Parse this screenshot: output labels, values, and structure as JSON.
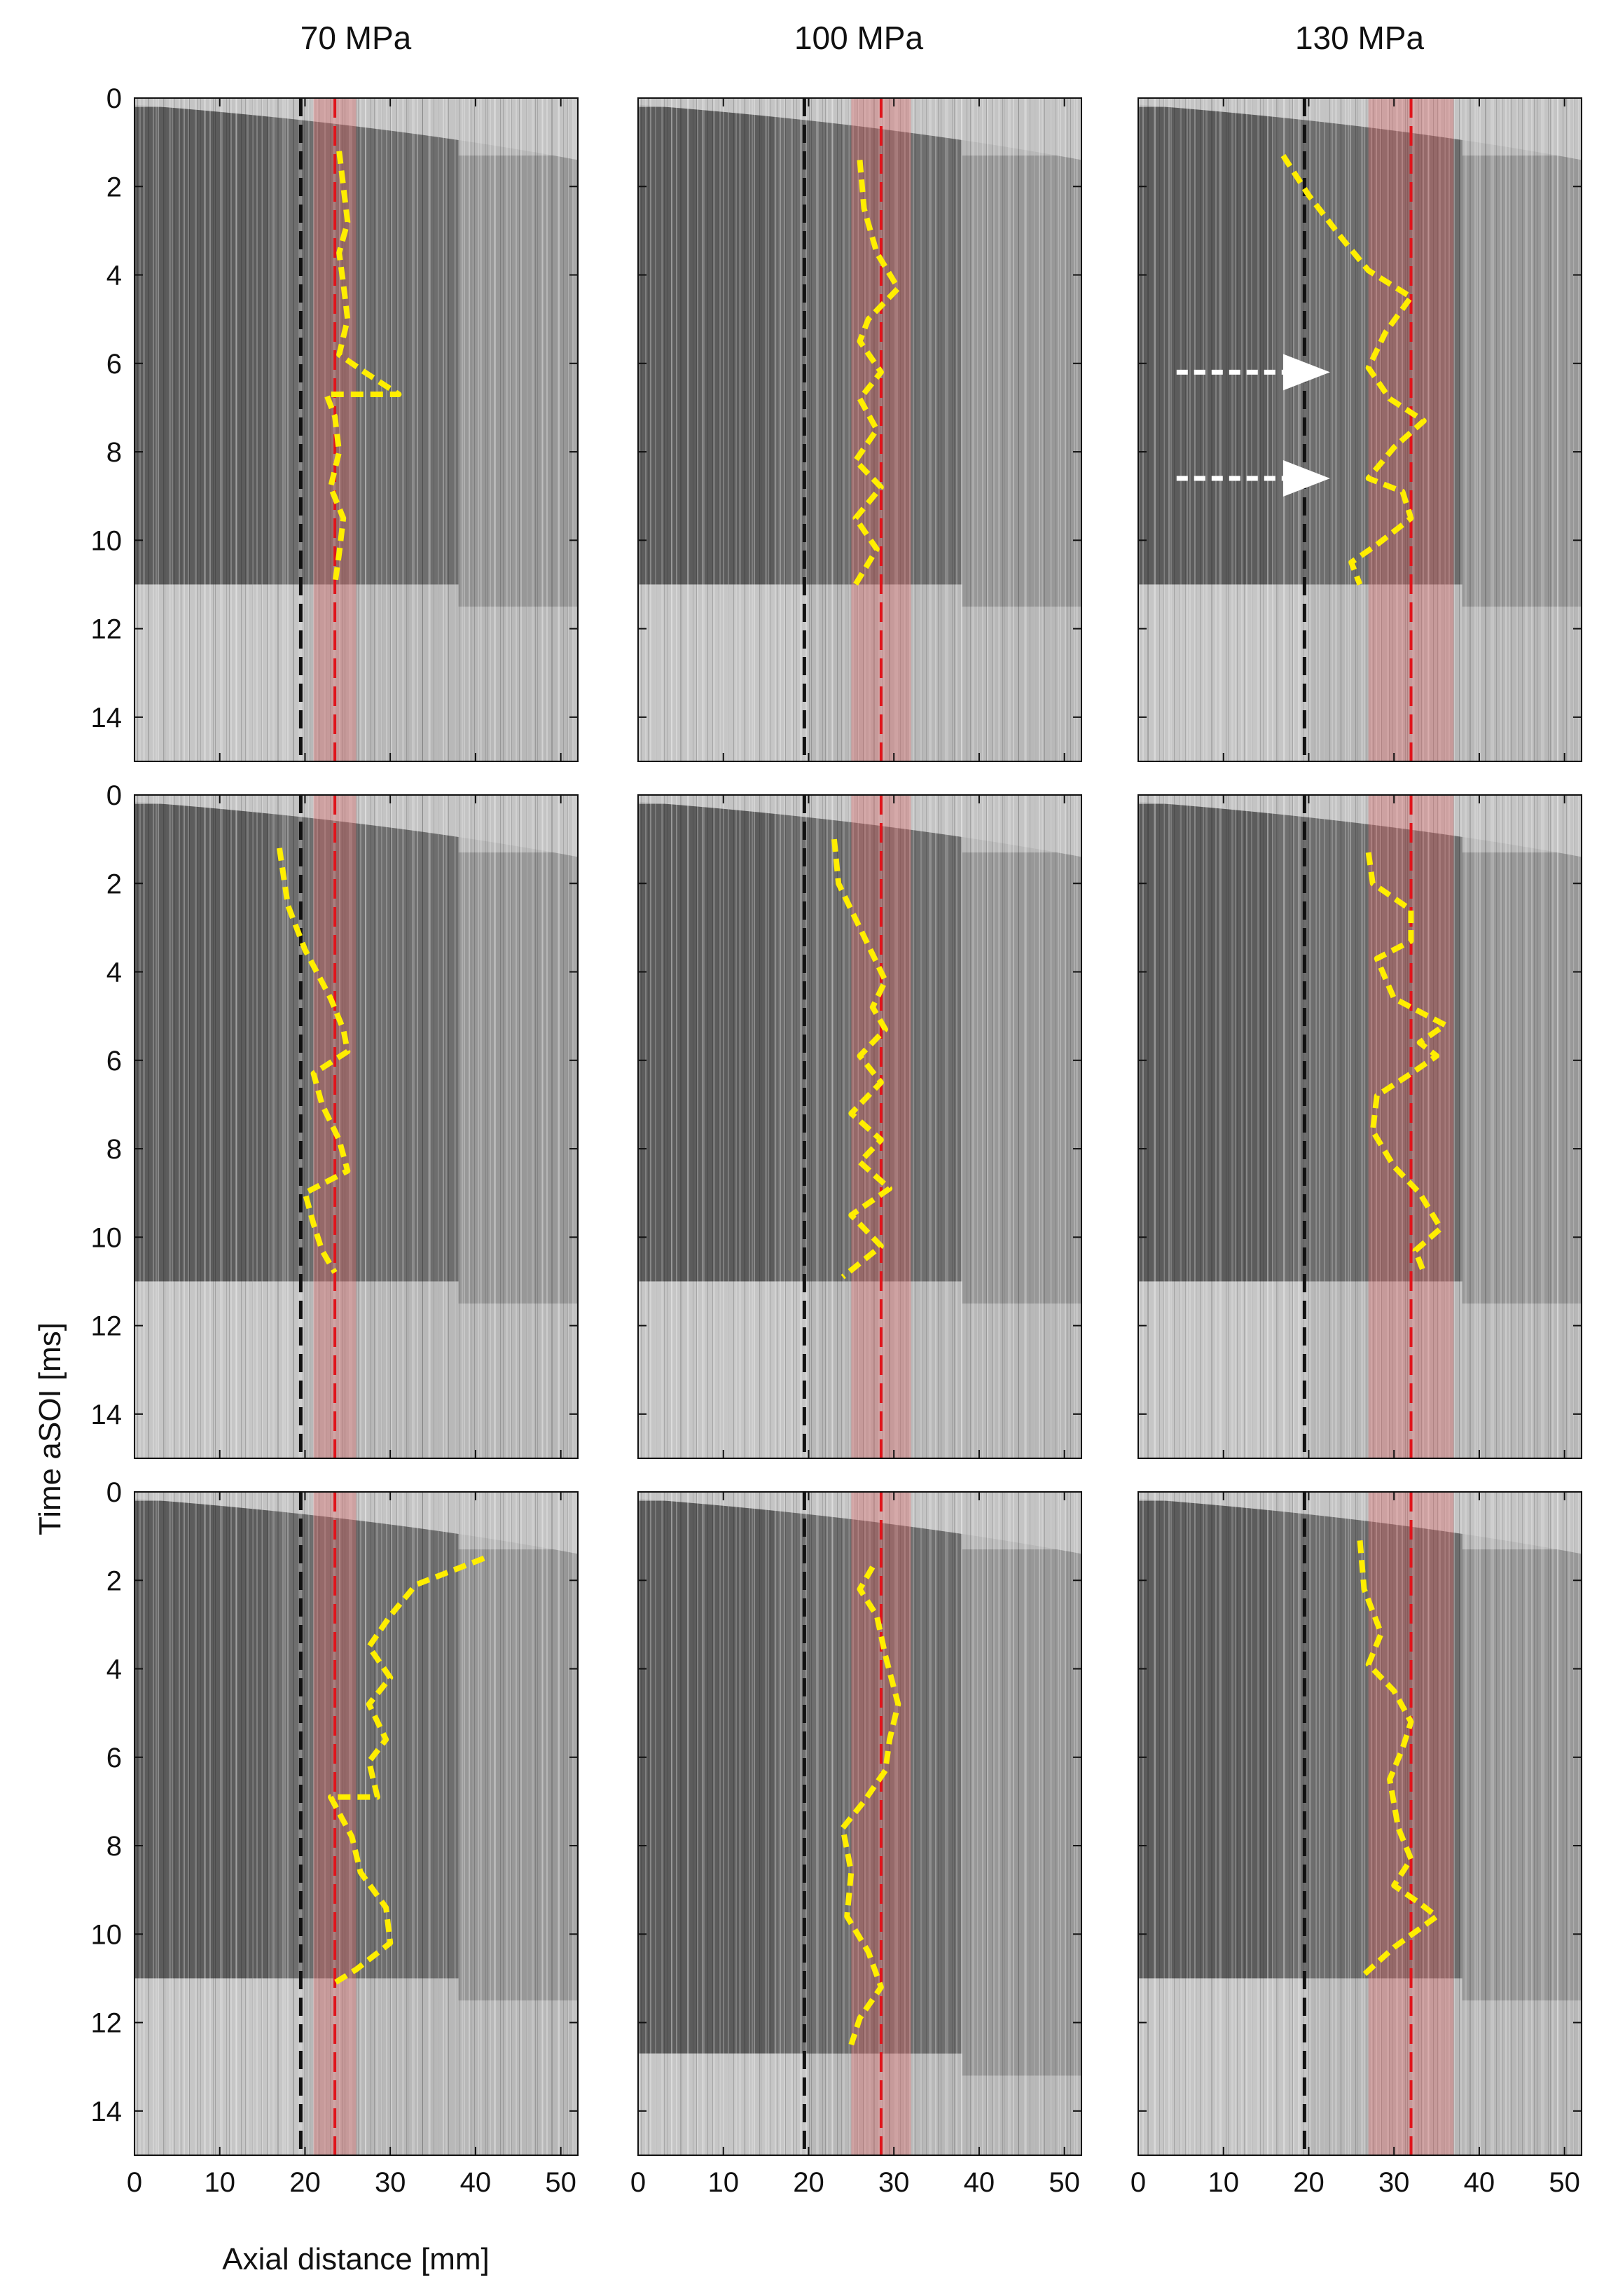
{
  "figure": {
    "column_titles": [
      "70 MPa",
      "100 MPa",
      "130 MPa"
    ],
    "xlabel": "Axial distance [mm]",
    "ylabel": "Time aSOI [ms]"
  },
  "chart_data": {
    "type": "scatter",
    "layout": "3x3 grid of grayscale spatio-temporal images with overlaid lift-off traces",
    "xlim": [
      0,
      52
    ],
    "ylim": [
      15,
      0
    ],
    "xticks": [
      0,
      10,
      20,
      30,
      40,
      50
    ],
    "yticks": [
      0,
      2,
      4,
      6,
      8,
      10,
      12,
      14
    ],
    "colors": {
      "trace": "#ffee00",
      "reference_line": "#e0141b",
      "band": "#e06060",
      "nozzle_line": "#111111",
      "arrow": "#ffffff"
    },
    "panels": [
      {
        "row": 0,
        "col": 0,
        "column_title": "70 MPa",
        "black_dashed_x": 19.5,
        "red_dashed_x": 23.5,
        "band": [
          21,
          26
        ],
        "end_of_injection_ms": 11.0,
        "trace": [
          [
            24,
            1.2
          ],
          [
            24.5,
            2
          ],
          [
            25,
            2.8
          ],
          [
            24,
            3.5
          ],
          [
            24.5,
            4.2
          ],
          [
            25,
            5
          ],
          [
            24,
            5.8
          ],
          [
            27,
            6.2
          ],
          [
            31,
            6.7
          ],
          [
            22.5,
            6.7
          ],
          [
            23.5,
            7.2
          ],
          [
            24,
            8
          ],
          [
            23,
            8.8
          ],
          [
            24.5,
            9.5
          ],
          [
            24,
            10.3
          ],
          [
            23.5,
            11
          ]
        ]
      },
      {
        "row": 0,
        "col": 1,
        "column_title": "100 MPa",
        "black_dashed_x": 19.5,
        "red_dashed_x": 28.5,
        "band": [
          25,
          32
        ],
        "end_of_injection_ms": 11.0,
        "trace": [
          [
            26,
            1.4
          ],
          [
            26.5,
            2.5
          ],
          [
            28,
            3.5
          ],
          [
            30.5,
            4.3
          ],
          [
            27,
            5
          ],
          [
            26,
            5.5
          ],
          [
            28.5,
            6.2
          ],
          [
            26,
            6.8
          ],
          [
            28,
            7.5
          ],
          [
            25.5,
            8.2
          ],
          [
            28.5,
            8.8
          ],
          [
            25.5,
            9.5
          ],
          [
            28,
            10.2
          ],
          [
            25.5,
            11
          ]
        ]
      },
      {
        "row": 0,
        "col": 2,
        "column_title": "130 MPa",
        "black_dashed_x": 19.5,
        "red_dashed_x": 32,
        "band": [
          27,
          37
        ],
        "end_of_injection_ms": 11.0,
        "arrows_ms": [
          6.2,
          8.6
        ],
        "trace": [
          [
            17,
            1.3
          ],
          [
            20,
            2.2
          ],
          [
            24,
            3.2
          ],
          [
            27,
            3.9
          ],
          [
            32,
            4.5
          ],
          [
            29,
            5.3
          ],
          [
            27,
            6.1
          ],
          [
            29.5,
            6.8
          ],
          [
            33.5,
            7.3
          ],
          [
            30,
            7.9
          ],
          [
            27,
            8.6
          ],
          [
            31,
            8.9
          ],
          [
            32,
            9.5
          ],
          [
            28,
            10.1
          ],
          [
            25,
            10.5
          ],
          [
            26,
            11
          ]
        ]
      },
      {
        "row": 1,
        "col": 0,
        "column_title": "70 MPa",
        "black_dashed_x": 19.5,
        "red_dashed_x": 23.5,
        "band": [
          21,
          26
        ],
        "end_of_injection_ms": 11.0,
        "trace": [
          [
            17,
            1.2
          ],
          [
            18,
            2.5
          ],
          [
            20,
            3.5
          ],
          [
            23,
            4.6
          ],
          [
            24.5,
            5.3
          ],
          [
            25,
            5.8
          ],
          [
            21,
            6.3
          ],
          [
            22,
            7
          ],
          [
            24,
            7.8
          ],
          [
            25,
            8.5
          ],
          [
            20,
            9.0
          ],
          [
            21,
            9.7
          ],
          [
            22,
            10.3
          ],
          [
            23.5,
            10.8
          ]
        ]
      },
      {
        "row": 1,
        "col": 1,
        "column_title": "100 MPa",
        "black_dashed_x": 19.5,
        "red_dashed_x": 28.5,
        "band": [
          25,
          32
        ],
        "end_of_injection_ms": 11.0,
        "trace": [
          [
            23,
            1
          ],
          [
            23.5,
            2
          ],
          [
            26,
            3
          ],
          [
            29,
            4.2
          ],
          [
            27.5,
            4.8
          ],
          [
            29,
            5.3
          ],
          [
            26,
            5.9
          ],
          [
            28.5,
            6.5
          ],
          [
            25,
            7.2
          ],
          [
            28.5,
            7.8
          ],
          [
            26,
            8.3
          ],
          [
            29.5,
            8.9
          ],
          [
            25,
            9.5
          ],
          [
            28.5,
            10.2
          ],
          [
            24,
            10.9
          ]
        ]
      },
      {
        "row": 1,
        "col": 2,
        "column_title": "130 MPa",
        "black_dashed_x": 19.5,
        "red_dashed_x": 32,
        "band": [
          27,
          37
        ],
        "end_of_injection_ms": 11.0,
        "trace": [
          [
            27,
            1.3
          ],
          [
            27.5,
            2
          ],
          [
            32,
            2.6
          ],
          [
            32,
            3.3
          ],
          [
            28,
            3.7
          ],
          [
            30,
            4.6
          ],
          [
            36,
            5.2
          ],
          [
            33,
            5.6
          ],
          [
            35,
            5.9
          ],
          [
            32,
            6.3
          ],
          [
            28,
            6.8
          ],
          [
            27.5,
            7.6
          ],
          [
            30,
            8.4
          ],
          [
            33,
            9.0
          ],
          [
            35.5,
            9.8
          ],
          [
            32.5,
            10.3
          ],
          [
            33.5,
            10.8
          ]
        ]
      },
      {
        "row": 2,
        "col": 0,
        "column_title": "70 MPa",
        "black_dashed_x": 19.5,
        "red_dashed_x": 23.5,
        "band": [
          21,
          26
        ],
        "end_of_injection_ms": 11.0,
        "trace": [
          [
            41,
            1.5
          ],
          [
            33,
            2.1
          ],
          [
            30,
            2.8
          ],
          [
            27.5,
            3.5
          ],
          [
            30,
            4.2
          ],
          [
            27.5,
            4.8
          ],
          [
            29.5,
            5.6
          ],
          [
            27.5,
            6.1
          ],
          [
            28.5,
            6.9
          ],
          [
            23,
            6.9
          ],
          [
            25.5,
            7.8
          ],
          [
            26.5,
            8.6
          ],
          [
            29.5,
            9.4
          ],
          [
            30,
            10.2
          ],
          [
            26,
            10.8
          ],
          [
            23.5,
            11.1
          ]
        ]
      },
      {
        "row": 2,
        "col": 1,
        "column_title": "100 MPa",
        "black_dashed_x": 19.5,
        "red_dashed_x": 28.5,
        "band": [
          25,
          32
        ],
        "end_of_injection_ms": 12.7,
        "trace": [
          [
            27.5,
            1.7
          ],
          [
            26,
            2.2
          ],
          [
            28,
            2.8
          ],
          [
            29,
            3.7
          ],
          [
            30.5,
            4.8
          ],
          [
            29.5,
            5.6
          ],
          [
            29,
            6.3
          ],
          [
            26.5,
            7
          ],
          [
            24,
            7.6
          ],
          [
            25,
            8.6
          ],
          [
            24.5,
            9.6
          ],
          [
            27,
            10.4
          ],
          [
            28.5,
            11.2
          ],
          [
            26,
            11.9
          ],
          [
            25,
            12.5
          ]
        ]
      },
      {
        "row": 2,
        "col": 2,
        "column_title": "130 MPa",
        "black_dashed_x": 19.5,
        "red_dashed_x": 32,
        "band": [
          27,
          37
        ],
        "end_of_injection_ms": 11.0,
        "trace": [
          [
            26,
            1.1
          ],
          [
            26.5,
            2.2
          ],
          [
            28.5,
            3.2
          ],
          [
            27,
            3.9
          ],
          [
            30,
            4.5
          ],
          [
            32,
            5.2
          ],
          [
            31,
            5.8
          ],
          [
            29.5,
            6.5
          ],
          [
            30.5,
            7.6
          ],
          [
            32,
            8.3
          ],
          [
            30,
            8.9
          ],
          [
            33,
            9.3
          ],
          [
            35,
            9.6
          ],
          [
            30,
            10.3
          ],
          [
            26,
            11
          ]
        ]
      }
    ]
  }
}
